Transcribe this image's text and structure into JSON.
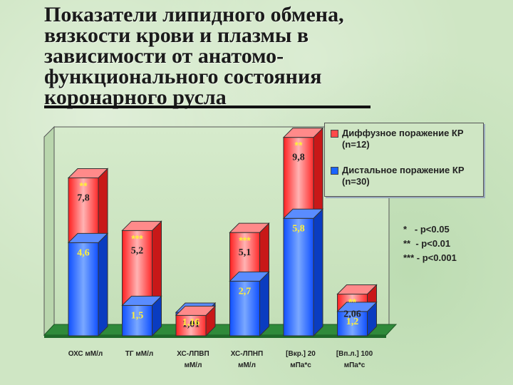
{
  "title_lines": [
    "Показатели липидного обмена,",
    "вязкости крови и плазмы в",
    "зависимости от анатомо-",
    "функционального состояния",
    "коронарного русла"
  ],
  "legend": {
    "diffuse": "Диффузное поражение КР (n=12)",
    "distal": "Дистальное поражение КР (n=30)"
  },
  "significance_notes": [
    "*   - p<0.05",
    "**  - p<0.01",
    "*** - p<0.001"
  ],
  "colors": {
    "diffuse_red": "#ff3b3b",
    "distal_blue": "#1a64ff",
    "label_yellow": "#ffef3a",
    "floor_green": "#2f8a3a"
  },
  "chart_data": {
    "type": "bar",
    "categories": [
      "ОХС мМ/л",
      "ТГ мМ/л",
      "ХС-ЛПВП мМ/л",
      "ХС-ЛПНП мМ/л",
      "[Вкр.] 20 мПа*с",
      "[Вп.л.] 100 мПа*с"
    ],
    "series": [
      {
        "name": "Диффузное поражение КР (n=12)",
        "values": [
          7.8,
          5.2,
          1.01,
          5.1,
          9.8,
          2.06
        ],
        "labels": [
          "7,8",
          "5,2",
          "1,01",
          "5,1",
          "9,8",
          "2,06"
        ],
        "significance": [
          "**",
          "***",
          "",
          "***",
          "**",
          "**"
        ]
      },
      {
        "name": "Дистальное поражение КР (n=30)",
        "values": [
          4.6,
          1.5,
          1.16,
          2.7,
          5.8,
          1.2
        ],
        "labels": [
          "4,6",
          "1,5",
          "1,16",
          "2,7",
          "5,8",
          "1,2"
        ],
        "significance": [
          "",
          "",
          "",
          "",
          "",
          ""
        ]
      }
    ],
    "ylim": [
      0,
      10
    ],
    "grid": false,
    "legend_position": "top-right"
  }
}
